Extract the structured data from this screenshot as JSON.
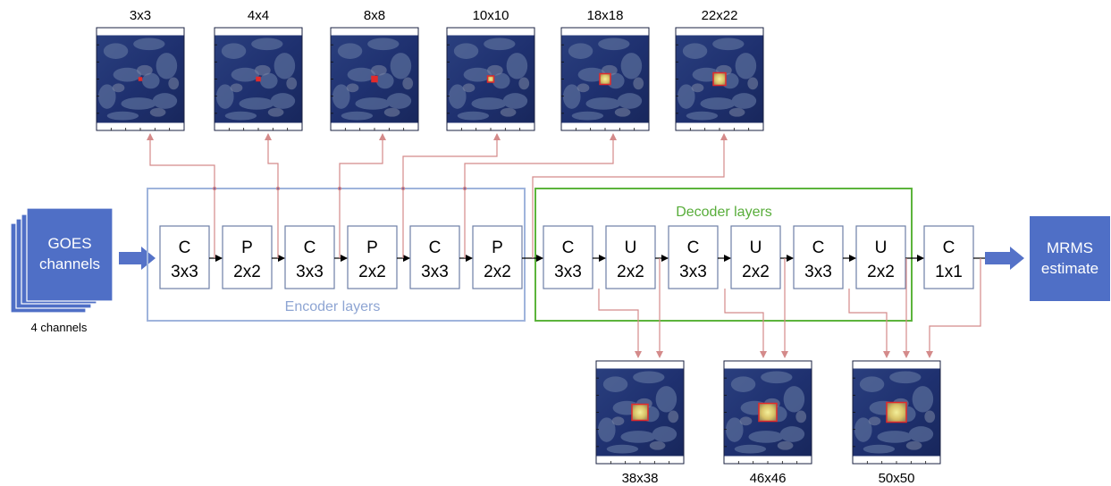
{
  "input": {
    "label_line1": "GOES",
    "label_line2": "channels",
    "caption": "4 channels"
  },
  "output": {
    "label_line1": "MRMS",
    "label_line2": "estimate"
  },
  "encoder": {
    "title": "Encoder layers",
    "layers": [
      {
        "op": "C",
        "size": "3x3"
      },
      {
        "op": "P",
        "size": "2x2"
      },
      {
        "op": "C",
        "size": "3x3"
      },
      {
        "op": "P",
        "size": "2x2"
      },
      {
        "op": "C",
        "size": "3x3"
      },
      {
        "op": "P",
        "size": "2x2"
      }
    ]
  },
  "decoder": {
    "title": "Decoder layers",
    "layers": [
      {
        "op": "C",
        "size": "3x3"
      },
      {
        "op": "U",
        "size": "2x2"
      },
      {
        "op": "C",
        "size": "3x3"
      },
      {
        "op": "U",
        "size": "2x2"
      },
      {
        "op": "C",
        "size": "3x3"
      },
      {
        "op": "U",
        "size": "2x2"
      }
    ]
  },
  "final_layer": {
    "op": "C",
    "size": "1x1"
  },
  "receptive_fields": {
    "top": [
      "3x3",
      "4x4",
      "8x8",
      "10x10",
      "18x18",
      "22x22"
    ],
    "bottom": [
      "38x38",
      "46x46",
      "50x50"
    ]
  },
  "colors": {
    "encoder_border": "#9fb4dc",
    "encoder_text": "#8ea5d3",
    "decoder_border": "#5cb43c",
    "decoder_text": "#58ad3a",
    "block_fill": "#4f6fc6",
    "arrow": "#5572c8",
    "link": "#d48a8a",
    "highlight": "#e22a2a"
  }
}
